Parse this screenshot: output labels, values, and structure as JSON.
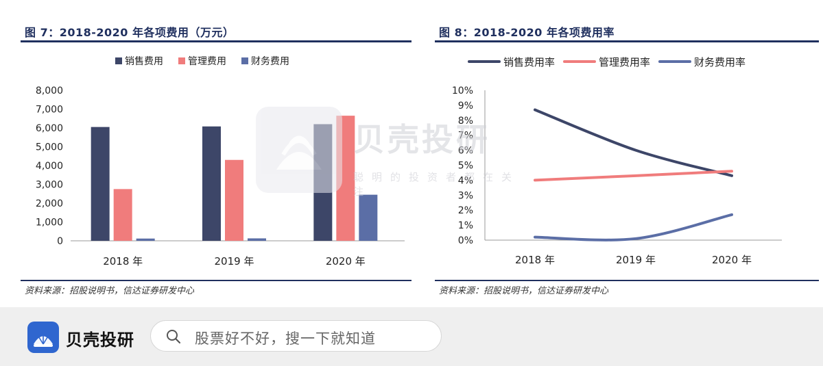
{
  "chart_data": [
    {
      "type": "bar",
      "title": "图 7：2018-2020 年各项费用（万元）",
      "source": "资料来源：招股说明书，信达证券研发中心",
      "categories": [
        "2018 年",
        "2019 年",
        "2020 年"
      ],
      "series": [
        {
          "name": "销售费用",
          "color": "#3d4668",
          "values": [
            6050,
            6080,
            6200
          ]
        },
        {
          "name": "管理费用",
          "color": "#f07c7c",
          "values": [
            2750,
            4300,
            6650
          ]
        },
        {
          "name": "财务费用",
          "color": "#5b6ea6",
          "values": [
            120,
            130,
            2450
          ]
        }
      ],
      "ylim": [
        0,
        8000
      ],
      "yticks": [
        "0",
        "1,000",
        "2,000",
        "3,000",
        "4,000",
        "5,000",
        "6,000",
        "7,000",
        "8,000"
      ],
      "legend": "top",
      "grid": false
    },
    {
      "type": "line",
      "title": "图 8：2018-2020 年各项费用率",
      "source": "资料来源：招股说明书，信达证券研发中心",
      "categories": [
        "2018 年",
        "2019 年",
        "2020 年"
      ],
      "series": [
        {
          "name": "销售费用率",
          "color": "#3d4668",
          "values": [
            8.7,
            6.0,
            4.3
          ]
        },
        {
          "name": "管理费用率",
          "color": "#f07c7c",
          "values": [
            4.0,
            4.3,
            4.6
          ]
        },
        {
          "name": "财务费用率",
          "color": "#5b6ea6",
          "values": [
            0.2,
            0.1,
            1.7
          ]
        }
      ],
      "ylim": [
        0,
        10
      ],
      "yticks": [
        "0%",
        "1%",
        "2%",
        "3%",
        "4%",
        "5%",
        "6%",
        "7%",
        "8%",
        "9%",
        "10%"
      ],
      "legend": "top",
      "grid": false
    }
  ],
  "watermark": {
    "name": "贝壳投研",
    "slogan": "聪明的投资者都在关注"
  },
  "footer": {
    "brand": "贝壳投研",
    "search_placeholder": "股票好不好，搜一下就知道",
    "icons": [
      "shell-logo-icon",
      "search-icon"
    ],
    "accent_color": "#2f66cf"
  }
}
